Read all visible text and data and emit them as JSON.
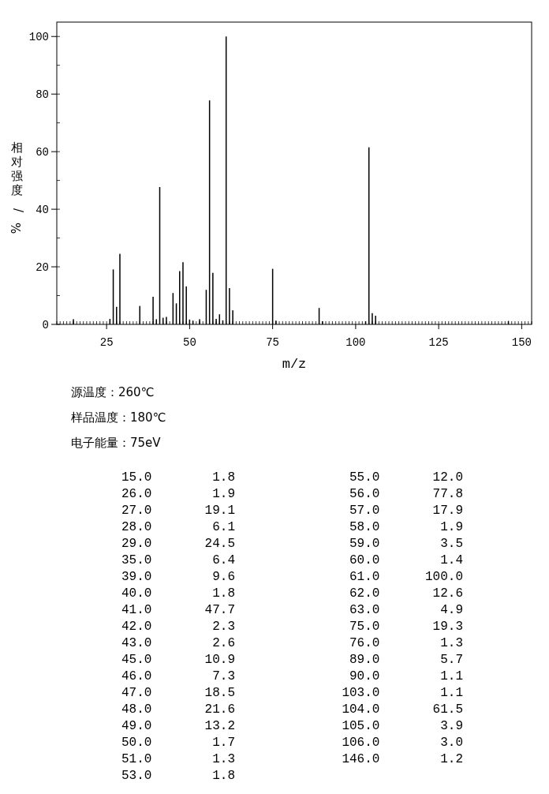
{
  "chart_data": {
    "type": "bar",
    "xlabel": "m/z",
    "ylabel": "相对强度/%",
    "x": [
      15,
      26,
      27,
      28,
      29,
      35,
      39,
      40,
      41,
      42,
      43,
      45,
      46,
      47,
      48,
      49,
      50,
      51,
      53,
      55,
      56,
      57,
      58,
      59,
      60,
      61,
      62,
      63,
      75,
      76,
      89,
      90,
      103,
      104,
      105,
      106,
      146
    ],
    "values": [
      1.8,
      1.9,
      19.1,
      6.1,
      24.5,
      6.4,
      9.6,
      1.8,
      47.7,
      2.3,
      2.6,
      10.9,
      7.3,
      18.5,
      21.6,
      13.2,
      1.7,
      1.3,
      1.8,
      12.0,
      77.8,
      17.9,
      1.9,
      3.5,
      1.4,
      100.0,
      12.6,
      4.9,
      19.3,
      1.3,
      5.7,
      1.1,
      1.1,
      61.5,
      3.9,
      3.0,
      1.2
    ],
    "color": "#000000",
    "xlim": [
      10,
      153
    ],
    "ylim": [
      0,
      105
    ],
    "xticks": [
      25,
      50,
      75,
      100,
      125,
      150
    ],
    "yticks": [
      0,
      20,
      40,
      60,
      80,
      100
    ],
    "annotations": [
      "源温度：260℃",
      "样品温度：180℃",
      "电子能量：75eV",
      "15.0        1.8",
      "26.0        1.9",
      "27.0       19.1",
      "28.0        6.1",
      "29.0       24.5",
      "35.0        6.4",
      "39.0        9.6",
      "40.0        1.8",
      "41.0       47.7",
      "42.0        2.3",
      "43.0        2.6",
      "45.0       10.9",
      "46.0        7.3",
      "47.0       18.5",
      "48.0       21.6",
      "49.0       13.2",
      "50.0        1.7",
      "51.0        1.3",
      "53.0        1.8",
      "55.0       12.0",
      "56.0       77.8",
      "57.0       17.9",
      "58.0        1.9",
      "59.0        3.5",
      "60.0        1.4",
      "61.0      100.0",
      "62.0       12.6",
      "63.0        4.9",
      "75.0       19.3",
      "76.0        1.3",
      "89.0        5.7",
      "90.0        1.1",
      "103.0        1.1",
      "104.0       61.5",
      "105.0        3.9",
      "106.0        3.0",
      "146.0        1.2"
    ]
  }
}
